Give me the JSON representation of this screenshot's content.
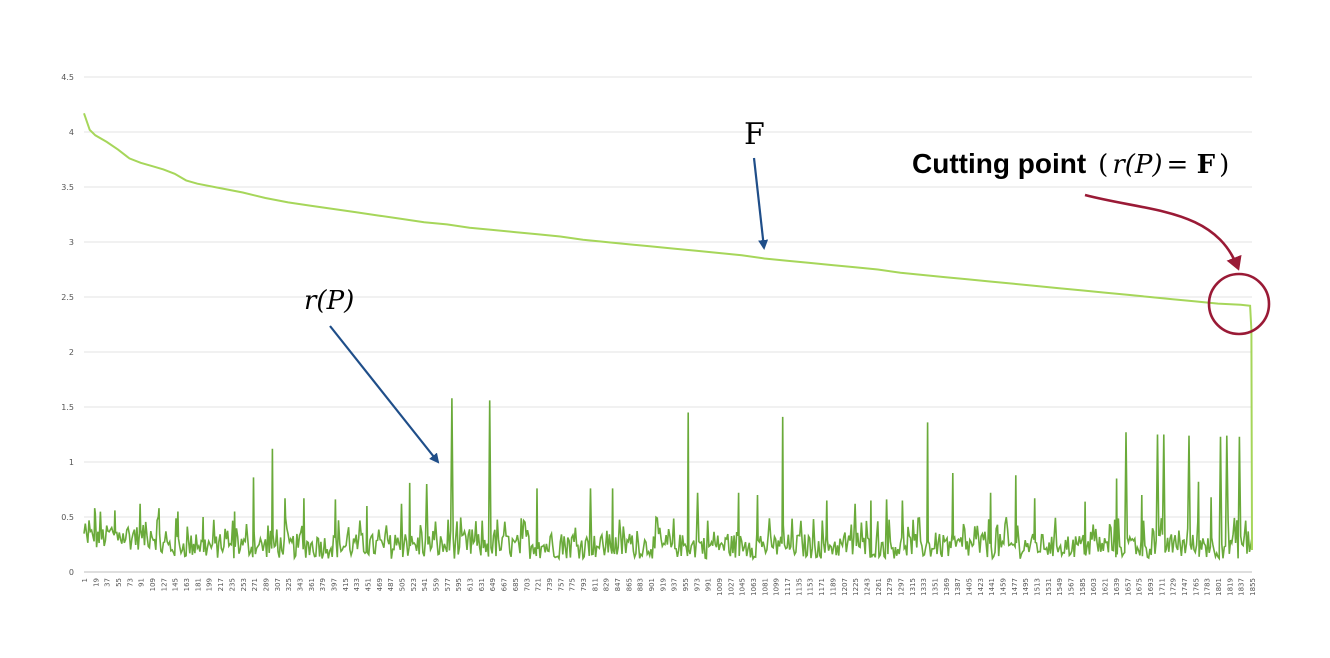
{
  "chart_data": {
    "type": "line",
    "title": "",
    "xlabel": "",
    "ylabel": "",
    "ylim": [
      0,
      4.5
    ],
    "y_ticks": [
      "0",
      "0.5",
      "1",
      "1.5",
      "2",
      "2.5",
      "3",
      "3.5",
      "4",
      "4.5"
    ],
    "grid": true,
    "x_range": [
      1,
      1855
    ],
    "x_tick_step": 18,
    "series": [
      {
        "name": "F",
        "color": "#a6d65a",
        "points": [
          [
            1,
            4.17
          ],
          [
            10,
            4.02
          ],
          [
            19,
            3.97
          ],
          [
            37,
            3.91
          ],
          [
            55,
            3.84
          ],
          [
            73,
            3.76
          ],
          [
            91,
            3.72
          ],
          [
            109,
            3.69
          ],
          [
            127,
            3.66
          ],
          [
            145,
            3.62
          ],
          [
            163,
            3.56
          ],
          [
            181,
            3.53
          ],
          [
            217,
            3.49
          ],
          [
            253,
            3.45
          ],
          [
            289,
            3.4
          ],
          [
            325,
            3.36
          ],
          [
            361,
            3.33
          ],
          [
            397,
            3.3
          ],
          [
            433,
            3.27
          ],
          [
            469,
            3.24
          ],
          [
            505,
            3.21
          ],
          [
            541,
            3.18
          ],
          [
            577,
            3.16
          ],
          [
            613,
            3.13
          ],
          [
            649,
            3.11
          ],
          [
            685,
            3.09
          ],
          [
            721,
            3.07
          ],
          [
            757,
            3.05
          ],
          [
            793,
            3.02
          ],
          [
            829,
            3.0
          ],
          [
            865,
            2.98
          ],
          [
            901,
            2.96
          ],
          [
            937,
            2.94
          ],
          [
            973,
            2.92
          ],
          [
            1009,
            2.9
          ],
          [
            1045,
            2.88
          ],
          [
            1081,
            2.85
          ],
          [
            1117,
            2.83
          ],
          [
            1153,
            2.81
          ],
          [
            1189,
            2.79
          ],
          [
            1225,
            2.77
          ],
          [
            1261,
            2.75
          ],
          [
            1297,
            2.72
          ],
          [
            1333,
            2.7
          ],
          [
            1369,
            2.68
          ],
          [
            1405,
            2.66
          ],
          [
            1441,
            2.64
          ],
          [
            1477,
            2.62
          ],
          [
            1513,
            2.6
          ],
          [
            1549,
            2.58
          ],
          [
            1585,
            2.56
          ],
          [
            1621,
            2.54
          ],
          [
            1657,
            2.52
          ],
          [
            1693,
            2.5
          ],
          [
            1729,
            2.48
          ],
          [
            1765,
            2.46
          ],
          [
            1801,
            2.44
          ],
          [
            1837,
            2.43
          ],
          [
            1852,
            2.42
          ],
          [
            1854,
            2.2
          ],
          [
            1855,
            0.2
          ]
        ]
      },
      {
        "name": "r(P)",
        "color": "#6aaa3a",
        "baseline_min": 0.12,
        "baseline_max": 0.5,
        "spikes": [
          [
            18,
            0.58
          ],
          [
            50,
            0.56
          ],
          [
            90,
            0.62
          ],
          [
            120,
            0.58
          ],
          [
            150,
            0.55
          ],
          [
            190,
            0.5
          ],
          [
            240,
            0.55
          ],
          [
            270,
            0.86
          ],
          [
            300,
            1.12
          ],
          [
            320,
            0.67
          ],
          [
            350,
            0.67
          ],
          [
            400,
            0.66
          ],
          [
            450,
            0.6
          ],
          [
            505,
            0.62
          ],
          [
            518,
            0.81
          ],
          [
            545,
            0.8
          ],
          [
            585,
            1.58
          ],
          [
            645,
            1.56
          ],
          [
            720,
            0.76
          ],
          [
            805,
            0.76
          ],
          [
            840,
            0.76
          ],
          [
            960,
            1.45
          ],
          [
            975,
            0.72
          ],
          [
            1040,
            0.72
          ],
          [
            1070,
            0.7
          ],
          [
            1110,
            1.41
          ],
          [
            1180,
            0.65
          ],
          [
            1225,
            0.62
          ],
          [
            1250,
            0.65
          ],
          [
            1275,
            0.66
          ],
          [
            1300,
            0.65
          ],
          [
            1340,
            1.36
          ],
          [
            1380,
            0.9
          ],
          [
            1440,
            0.72
          ],
          [
            1480,
            0.88
          ],
          [
            1510,
            0.67
          ],
          [
            1590,
            0.64
          ],
          [
            1640,
            0.85
          ],
          [
            1655,
            1.27
          ],
          [
            1680,
            0.7
          ],
          [
            1705,
            1.25
          ],
          [
            1715,
            1.25
          ],
          [
            1755,
            1.24
          ],
          [
            1770,
            0.82
          ],
          [
            1790,
            0.68
          ],
          [
            1805,
            1.23
          ],
          [
            1815,
            1.24
          ],
          [
            1835,
            1.23
          ]
        ]
      }
    ],
    "annotations": {
      "F_label": "F",
      "rP_label": "r(P)",
      "cutting_bold": "Cutting point",
      "cutting_open": "(",
      "cutting_r": "r(P)",
      "cutting_eq": " = ",
      "cutting_F": "F",
      "cutting_close": ")"
    },
    "annotation_colors": {
      "arrows": "#1f4e89",
      "cutting": "#9a1a36"
    }
  }
}
